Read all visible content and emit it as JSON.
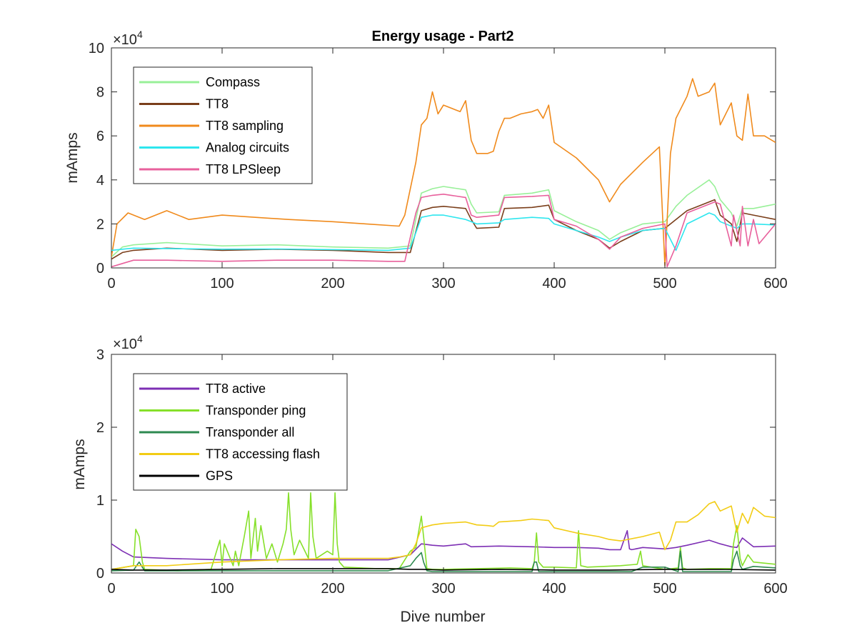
{
  "chart_data": [
    {
      "type": "line",
      "title": "Energy usage - Part2",
      "xlabel": "",
      "ylabel": "mAmps",
      "xlim": [
        0,
        600
      ],
      "ylim": [
        0,
        100000
      ],
      "xticks": [
        0,
        100,
        200,
        300,
        400,
        500,
        600
      ],
      "xtick_labels": [
        "0",
        "100",
        "200",
        "300",
        "400",
        "500",
        "600"
      ],
      "yticks": [
        0,
        20000,
        40000,
        60000,
        80000,
        100000
      ],
      "ytick_labels": [
        "0",
        "2",
        "4",
        "6",
        "8",
        "10"
      ],
      "exponent_label": "×10",
      "exponent_power": "4",
      "legend_position": "top-left",
      "grid": false,
      "series": [
        {
          "name": "Compass",
          "color": "#98f098",
          "x": [
            0,
            10,
            20,
            50,
            100,
            150,
            200,
            250,
            270,
            280,
            290,
            300,
            320,
            325,
            330,
            350,
            355,
            380,
            395,
            400,
            420,
            440,
            450,
            460,
            480,
            500,
            510,
            520,
            540,
            545,
            550,
            560,
            565,
            570,
            580,
            600
          ],
          "y": [
            5000,
            9500,
            10500,
            11500,
            10000,
            10500,
            9500,
            9000,
            10000,
            34000,
            36000,
            37000,
            35500,
            29000,
            25000,
            25500,
            33000,
            34000,
            35500,
            26000,
            21000,
            17000,
            13000,
            16000,
            20000,
            21000,
            28000,
            33000,
            40000,
            37000,
            31000,
            25000,
            19000,
            27000,
            27000,
            29000
          ]
        },
        {
          "name": "TT8",
          "color": "#7a3e1a",
          "x": [
            0,
            10,
            20,
            50,
            100,
            150,
            200,
            250,
            270,
            280,
            290,
            300,
            320,
            325,
            330,
            350,
            355,
            380,
            395,
            400,
            420,
            440,
            450,
            460,
            480,
            500,
            510,
            520,
            540,
            545,
            550,
            560,
            565,
            570,
            580,
            600
          ],
          "y": [
            4000,
            7000,
            8000,
            9000,
            8000,
            8500,
            8000,
            7000,
            7000,
            26000,
            27500,
            28000,
            27000,
            22000,
            18000,
            18500,
            27000,
            27500,
            28500,
            22000,
            17000,
            13000,
            9000,
            12000,
            17000,
            18000,
            22000,
            26000,
            30000,
            31000,
            24000,
            20000,
            12000,
            25000,
            24000,
            22000
          ]
        },
        {
          "name": "TT8 sampling",
          "color": "#f08a1c",
          "x": [
            0,
            5,
            15,
            30,
            50,
            70,
            100,
            130,
            160,
            200,
            230,
            260,
            265,
            275,
            280,
            285,
            290,
            295,
            300,
            310,
            315,
            320,
            325,
            330,
            340,
            345,
            350,
            355,
            360,
            370,
            380,
            385,
            390,
            395,
            400,
            420,
            440,
            450,
            460,
            480,
            495,
            500,
            505,
            510,
            520,
            525,
            530,
            540,
            545,
            550,
            560,
            565,
            570,
            575,
            580,
            590,
            600
          ],
          "y": [
            5000,
            20000,
            25000,
            22000,
            26000,
            22000,
            24000,
            23000,
            22000,
            21000,
            20000,
            19000,
            24000,
            48000,
            65000,
            68000,
            80000,
            70000,
            74000,
            72000,
            71000,
            76000,
            58000,
            52000,
            52000,
            53000,
            62000,
            68000,
            68000,
            70000,
            71000,
            72000,
            68000,
            74000,
            57000,
            50000,
            40000,
            30000,
            38000,
            48000,
            55000,
            1000,
            52000,
            68000,
            78000,
            86000,
            78000,
            80000,
            84000,
            65000,
            75000,
            60000,
            58000,
            79000,
            60000,
            60000,
            57000
          ]
        },
        {
          "name": "Analog circuits",
          "color": "#2ee6ee",
          "x": [
            0,
            10,
            20,
            50,
            100,
            150,
            200,
            250,
            270,
            280,
            290,
            300,
            320,
            325,
            330,
            350,
            355,
            380,
            395,
            400,
            420,
            440,
            450,
            460,
            480,
            500,
            510,
            520,
            540,
            545,
            550,
            560,
            565,
            570,
            580,
            600
          ],
          "y": [
            8000,
            8500,
            9000,
            8800,
            8500,
            8600,
            8300,
            8000,
            9000,
            23000,
            24000,
            24000,
            22000,
            21000,
            20000,
            20500,
            22000,
            23000,
            22500,
            20000,
            17000,
            14000,
            12000,
            14000,
            17000,
            18000,
            8000,
            20000,
            25000,
            24000,
            21000,
            19000,
            18000,
            20000,
            20000,
            19500
          ]
        },
        {
          "name": "TT8 LPSleep",
          "color": "#e8609c",
          "x": [
            0,
            10,
            20,
            50,
            100,
            150,
            200,
            250,
            265,
            275,
            280,
            290,
            300,
            320,
            325,
            330,
            350,
            355,
            380,
            395,
            400,
            420,
            440,
            450,
            460,
            480,
            500,
            502,
            510,
            520,
            540,
            545,
            550,
            560,
            562,
            568,
            570,
            575,
            580,
            585,
            600
          ],
          "y": [
            500,
            2000,
            3500,
            3500,
            3000,
            3500,
            3500,
            3000,
            3000,
            25000,
            32000,
            33000,
            33500,
            32000,
            24000,
            23000,
            24000,
            32000,
            32500,
            33000,
            22000,
            19000,
            13000,
            8500,
            14000,
            18000,
            20000,
            500,
            10000,
            25000,
            29000,
            30000,
            29000,
            10000,
            24000,
            10000,
            28000,
            10000,
            22000,
            11000,
            20000
          ]
        }
      ]
    },
    {
      "type": "line",
      "title": "",
      "xlabel": "Dive number",
      "ylabel": "mAmps",
      "xlim": [
        0,
        600
      ],
      "ylim": [
        0,
        30000
      ],
      "xticks": [
        0,
        100,
        200,
        300,
        400,
        500,
        600
      ],
      "xtick_labels": [
        "0",
        "100",
        "200",
        "300",
        "400",
        "500",
        "600"
      ],
      "yticks": [
        0,
        10000,
        20000,
        30000
      ],
      "ytick_labels": [
        "0",
        "1",
        "2",
        "3"
      ],
      "exponent_label": "×10",
      "exponent_power": "4",
      "legend_position": "top-left",
      "grid": false,
      "series": [
        {
          "name": "TT8 active",
          "color": "#7d2fb4",
          "x": [
            0,
            10,
            20,
            50,
            100,
            150,
            200,
            250,
            270,
            280,
            290,
            300,
            320,
            325,
            350,
            380,
            400,
            420,
            440,
            450,
            460,
            466,
            468,
            470,
            480,
            500,
            510,
            520,
            540,
            550,
            560,
            565,
            570,
            580,
            600
          ],
          "y": [
            4000,
            3000,
            2200,
            2000,
            1800,
            1800,
            1800,
            1800,
            2500,
            4000,
            3800,
            3700,
            4000,
            3600,
            3700,
            3600,
            3500,
            3500,
            3400,
            3200,
            3200,
            5800,
            3300,
            3200,
            3500,
            3300,
            3500,
            3800,
            4500,
            4000,
            3600,
            3500,
            4800,
            3600,
            3700
          ]
        },
        {
          "name": "Transponder ping",
          "color": "#86e02a",
          "x": [
            0,
            20,
            22,
            25,
            28,
            30,
            60,
            90,
            98,
            100,
            102,
            110,
            112,
            115,
            120,
            124,
            126,
            130,
            132,
            135,
            140,
            145,
            150,
            155,
            158,
            160,
            162,
            165,
            170,
            178,
            180,
            182,
            185,
            195,
            200,
            202,
            204,
            206,
            210,
            240,
            260,
            270,
            275,
            280,
            282,
            285,
            290,
            300,
            330,
            360,
            380,
            382,
            384,
            386,
            390,
            400,
            420,
            422,
            424,
            430,
            460,
            475,
            478,
            480,
            500,
            512,
            514,
            516,
            520,
            540,
            560,
            562,
            565,
            568,
            570,
            575,
            580,
            600
          ],
          "y": [
            500,
            1000,
            6000,
            5000,
            1500,
            500,
            300,
            500,
            4500,
            1000,
            4000,
            1000,
            3000,
            1000,
            5000,
            8500,
            2000,
            7500,
            3000,
            6500,
            2000,
            4000,
            1500,
            4000,
            6000,
            11000,
            6000,
            2500,
            4500,
            2000,
            11000,
            5000,
            2000,
            3000,
            2500,
            11000,
            4000,
            1500,
            800,
            600,
            600,
            3000,
            3500,
            7800,
            5000,
            600,
            500,
            500,
            600,
            700,
            600,
            1500,
            5500,
            1500,
            800,
            800,
            700,
            5800,
            1000,
            800,
            1000,
            1200,
            3000,
            1000,
            500,
            700,
            3500,
            700,
            500,
            600,
            600,
            4000,
            6500,
            2000,
            1000,
            2500,
            1500,
            1200
          ]
        },
        {
          "name": "Transponder all",
          "color": "#2e8a50",
          "x": [
            0,
            20,
            25,
            30,
            100,
            200,
            250,
            270,
            275,
            280,
            282,
            285,
            290,
            300,
            380,
            382,
            384,
            386,
            390,
            470,
            480,
            500,
            512,
            514,
            516,
            520,
            560,
            562,
            565,
            568,
            570,
            580,
            600
          ],
          "y": [
            300,
            400,
            1500,
            300,
            300,
            300,
            300,
            1000,
            2000,
            2800,
            1500,
            300,
            200,
            200,
            200,
            1500,
            1500,
            200,
            200,
            200,
            800,
            800,
            200,
            3000,
            200,
            200,
            200,
            1800,
            3000,
            1000,
            500,
            900,
            700
          ]
        },
        {
          "name": "TT8 accessing flash",
          "color": "#f2cc14",
          "x": [
            0,
            20,
            50,
            100,
            150,
            200,
            250,
            260,
            270,
            275,
            280,
            290,
            300,
            320,
            330,
            340,
            345,
            350,
            370,
            380,
            395,
            400,
            420,
            440,
            450,
            460,
            480,
            495,
            500,
            505,
            510,
            520,
            530,
            540,
            545,
            550,
            560,
            565,
            570,
            575,
            580,
            590,
            600
          ],
          "y": [
            500,
            1000,
            1000,
            1500,
            1800,
            2000,
            2000,
            2200,
            2500,
            4000,
            6200,
            6600,
            6800,
            7000,
            6600,
            6500,
            6400,
            7000,
            7200,
            7400,
            7200,
            6200,
            5500,
            5000,
            4600,
            4400,
            5000,
            5600,
            3200,
            4500,
            7000,
            7000,
            8000,
            9500,
            9800,
            8500,
            9200,
            5600,
            8200,
            6800,
            9000,
            7800,
            7600
          ]
        },
        {
          "name": "GPS",
          "color": "#000000",
          "x": [
            0,
            20,
            50,
            100,
            150,
            200,
            250,
            270,
            280,
            300,
            350,
            400,
            450,
            500,
            550,
            600
          ],
          "y": [
            500,
            400,
            400,
            500,
            600,
            600,
            600,
            500,
            500,
            400,
            500,
            400,
            400,
            500,
            500,
            400
          ]
        }
      ]
    }
  ]
}
